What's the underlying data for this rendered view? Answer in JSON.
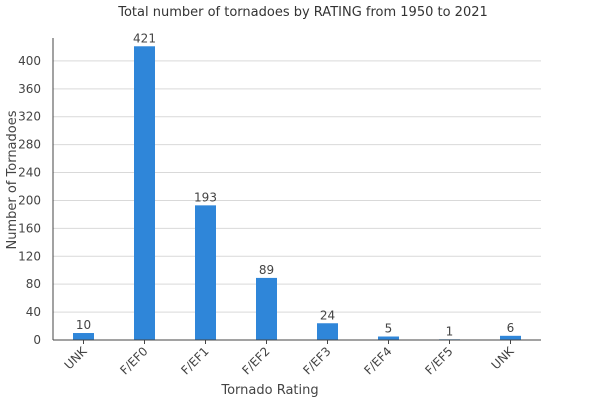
{
  "chart_data": {
    "type": "bar",
    "title": "Total number of tornadoes by RATING from 1950 to 2021",
    "xlabel": "Tornado Rating",
    "ylabel": "Number of Tornadoes",
    "categories": [
      "UNK",
      "F/EF0",
      "F/EF1",
      "F/EF2",
      "F/EF3",
      "F/EF4",
      "F/EF5",
      "UNK"
    ],
    "values": [
      10,
      421,
      193,
      89,
      24,
      5,
      1,
      6
    ],
    "ylim": [
      0,
      430
    ],
    "yticks": [
      0,
      40,
      80,
      120,
      160,
      200,
      240,
      280,
      320,
      360,
      400
    ],
    "grid": true,
    "legend": "none",
    "bar_color": "#2f86d9"
  }
}
